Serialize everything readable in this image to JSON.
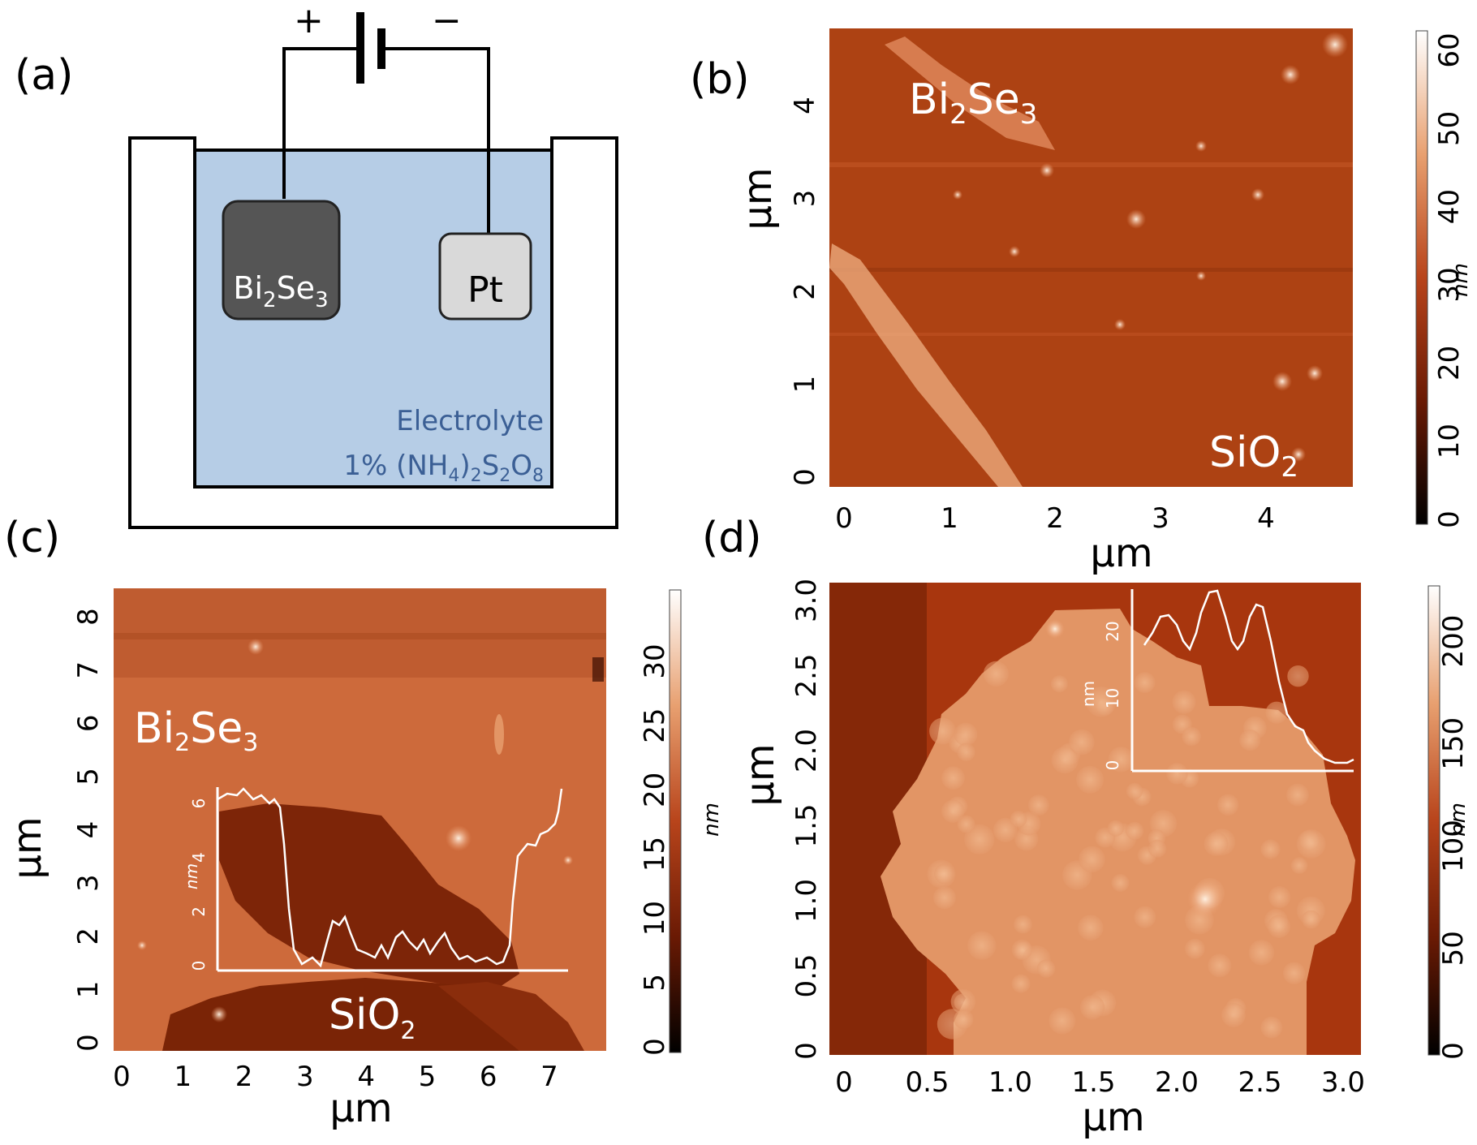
{
  "colors": {
    "electrolyte": "#b6cde6",
    "bi2se3_electrode": "#555555",
    "pt_electrode": "#d9d9d9",
    "electrolyte_text": "#3b5f95",
    "afm_dark": "#2a0800",
    "afm_mid": "#b8441b",
    "afm_light": "#ffffff"
  },
  "panel_a": {
    "label": "(a)",
    "battery_plus": "+",
    "battery_minus": "−",
    "anode_label": "Bi",
    "anode_sub": "2",
    "anode_label2": "Se",
    "anode_sub2": "3",
    "cathode_label": "Pt",
    "electrolyte_line1": "Electrolyte",
    "electrolyte_line2_parts": [
      "1% (NH",
      "4",
      ")",
      "2",
      "S",
      "2",
      "O",
      "8"
    ]
  },
  "panel_b": {
    "label": "(b)",
    "material_label": [
      "Bi",
      "2",
      "Se",
      "3"
    ],
    "substrate_label": [
      "SiO",
      "2"
    ],
    "x_ticks": [
      "0",
      "1",
      "2",
      "3",
      "4"
    ],
    "y_ticks": [
      "0",
      "1",
      "2",
      "3",
      "4"
    ],
    "x_title": "μm",
    "y_title": "μm",
    "colorbar_ticks": [
      "0",
      "10",
      "20",
      "30",
      "40",
      "50",
      "60"
    ],
    "colorbar_unit": "nm"
  },
  "panel_c": {
    "label": "(c)",
    "material_label": [
      "Bi",
      "2",
      "Se",
      "3"
    ],
    "substrate_label": [
      "SiO",
      "2"
    ],
    "x_ticks": [
      "0",
      "1",
      "2",
      "3",
      "4",
      "5",
      "6",
      "7"
    ],
    "y_ticks": [
      "0",
      "1",
      "2",
      "3",
      "4",
      "5",
      "6",
      "7",
      "8"
    ],
    "x_title": "μm",
    "y_title": "μm",
    "colorbar_ticks": [
      "0",
      "5",
      "10",
      "15",
      "20",
      "25",
      "30"
    ],
    "colorbar_unit": "nm",
    "inset_y_ticks": [
      "0",
      "2",
      "4",
      "6"
    ],
    "inset_y_title": "nm"
  },
  "panel_d": {
    "label": "(d)",
    "x_ticks": [
      "0",
      "0.5",
      "1.0",
      "1.5",
      "2.0",
      "2.5",
      "3.0"
    ],
    "y_ticks": [
      "0",
      "0.5",
      "1.0",
      "1.5",
      "2.0",
      "2.5",
      "3.0"
    ],
    "x_title": "μm",
    "y_title": "μm",
    "colorbar_ticks": [
      "0",
      "50",
      "100",
      "150",
      "200"
    ],
    "colorbar_unit": "nm",
    "inset_y_ticks": [
      "0",
      "10",
      "20"
    ],
    "inset_y_title": "nm"
  }
}
